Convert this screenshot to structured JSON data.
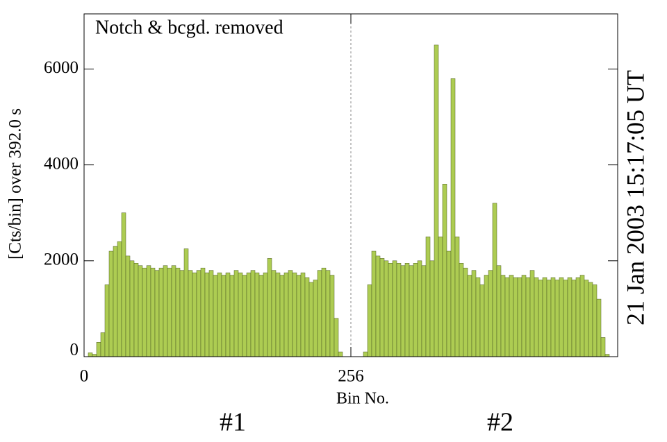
{
  "chart_data": {
    "type": "histogram",
    "annotation": "Notch & bcgd. removed",
    "y_label": "[Cts/bin] over   392.0 s",
    "x_label": "Bin No.",
    "right_label": "21 Jan  2003  15:17:05  UT",
    "right_label_color": "#cc0000",
    "region_labels": [
      {
        "text": "#1",
        "color": "#cc0000"
      },
      {
        "text": "#2",
        "color": "#0000cc"
      }
    ],
    "color": "#adcc52",
    "bins": [
      0,
      4,
      8,
      12,
      16,
      20,
      24,
      28,
      32,
      36,
      40,
      44,
      48,
      52,
      56,
      60,
      64,
      68,
      72,
      76,
      80,
      84,
      88,
      92,
      96,
      100,
      104,
      108,
      112,
      116,
      120,
      124,
      128,
      132,
      136,
      140,
      144,
      148,
      152,
      156,
      160,
      164,
      168,
      172,
      176,
      180,
      184,
      188,
      192,
      196,
      200,
      204,
      208,
      212,
      216,
      220,
      224,
      228,
      232,
      236,
      240,
      244,
      248,
      252,
      256,
      260,
      264,
      268,
      272,
      276,
      280,
      284,
      288,
      292,
      296,
      300,
      304,
      308,
      312,
      316,
      320,
      324,
      328,
      332,
      336,
      340,
      344,
      348,
      352,
      356,
      360,
      364,
      368,
      372,
      376,
      380,
      384,
      388,
      392,
      396,
      400,
      404,
      408,
      412,
      416,
      420,
      424,
      428,
      432,
      436,
      440,
      444,
      448,
      452,
      456,
      460,
      464,
      468,
      472,
      476,
      480,
      484,
      488,
      492,
      496,
      500,
      504,
      508,
      512
    ],
    "values": [
      0,
      80,
      50,
      300,
      500,
      1500,
      2200,
      2300,
      2400,
      3000,
      2100,
      2000,
      1950,
      1900,
      1850,
      1900,
      1850,
      1800,
      1850,
      1900,
      1850,
      1900,
      1850,
      1800,
      2250,
      1800,
      1750,
      1800,
      1850,
      1750,
      1800,
      1700,
      1750,
      1700,
      1750,
      1700,
      1800,
      1750,
      1700,
      1750,
      1800,
      1750,
      1700,
      1750,
      2050,
      1800,
      1750,
      1700,
      1750,
      1800,
      1750,
      1700,
      1750,
      1650,
      1550,
      1600,
      1800,
      1850,
      1800,
      1700,
      800,
      100,
      0,
      0,
      0,
      0,
      0,
      100,
      1500,
      2200,
      2100,
      2050,
      2000,
      1950,
      2000,
      1950,
      1900,
      1950,
      1900,
      1950,
      2000,
      1900,
      2500,
      2000,
      6500,
      2500,
      3600,
      2200,
      5800,
      2500,
      1950,
      1850,
      1700,
      1800,
      1650,
      1500,
      1700,
      1800,
      3200,
      1900,
      1700,
      1650,
      1700,
      1650,
      1650,
      1700,
      1650,
      1800,
      1650,
      1600,
      1650,
      1600,
      1650,
      1600,
      1650,
      1600,
      1650,
      1600,
      1650,
      1700,
      1600,
      1550,
      1500,
      1200,
      400,
      50,
      0,
      0
    ],
    "vline": 256,
    "xlim": [
      0,
      512
    ],
    "xticks": [
      0,
      256
    ],
    "ylim": [
      0,
      7150
    ],
    "yticks": [
      0,
      2000,
      4000,
      6000
    ]
  }
}
